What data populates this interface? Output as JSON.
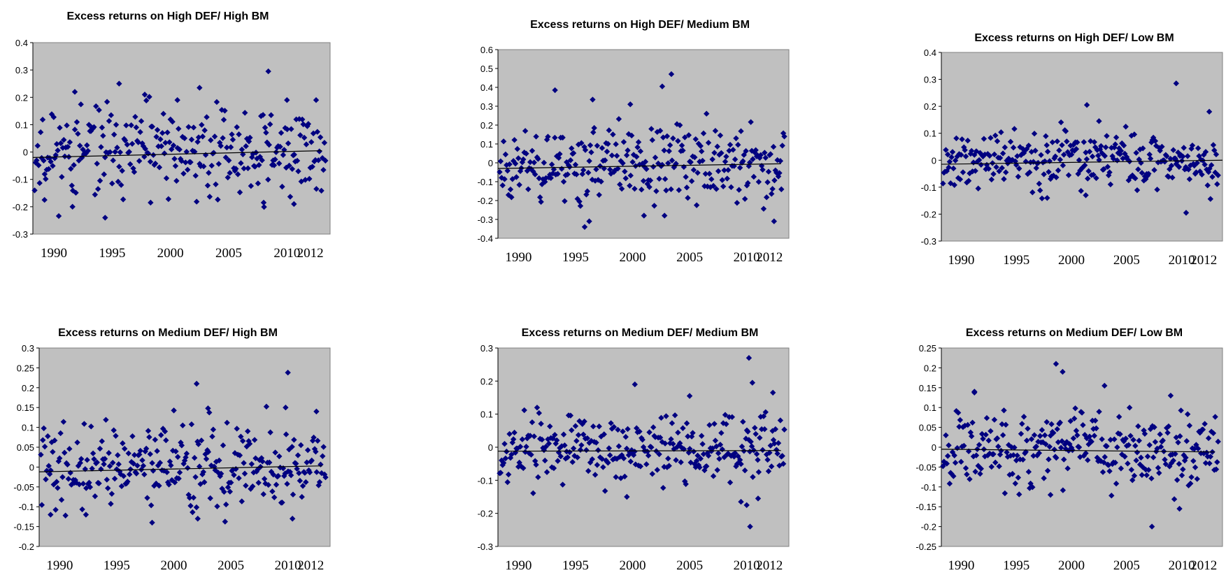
{
  "chart_data": [
    {
      "type": "scatter",
      "title": "Excess returns on High DEF/ High BM",
      "ylim": [
        -0.3,
        0.4
      ],
      "y_ticks": [
        "0.4",
        "0.3",
        "0.2",
        "0.1",
        "0",
        "-0.1",
        "-0.2",
        "-0.3"
      ],
      "x_ticks": [
        "1990",
        "1995",
        "2000",
        "2005",
        "2010",
        "2012"
      ],
      "xlim": [
        1988.2,
        2013.7
      ],
      "trend": [
        [
          1988.2,
          -0.02
        ],
        [
          2013.0,
          0.005
        ]
      ],
      "sd": 0.085,
      "seed": 11,
      "outliers": [
        [
          1991.8,
          0.22
        ],
        [
          1995.6,
          0.25
        ],
        [
          1997.8,
          0.21
        ],
        [
          2000.6,
          0.19
        ],
        [
          2002.5,
          0.235
        ],
        [
          2008.4,
          0.295
        ],
        [
          2010.0,
          0.19
        ],
        [
          2012.5,
          0.19
        ],
        [
          1994.4,
          -0.24
        ],
        [
          1998.3,
          -0.185
        ],
        [
          1991.6,
          -0.2
        ],
        [
          2010.6,
          -0.19
        ],
        [
          2008.0,
          -0.185
        ],
        [
          1989.2,
          -0.175
        ]
      ],
      "grid": false,
      "legend": "none",
      "color": "#000080",
      "background": "#c0c0c0"
    },
    {
      "type": "scatter",
      "title": "Excess returns on High DEF/ Medium BM",
      "ylim": [
        -0.4,
        0.6
      ],
      "y_ticks": [
        "0.6",
        "0.5",
        "0.4",
        "0.3",
        "0.2",
        "0.1",
        "0",
        "-0.1",
        "-0.2",
        "-0.3",
        "-0.4"
      ],
      "x_ticks": [
        "1990",
        "1995",
        "2000",
        "2005",
        "2010",
        "2012"
      ],
      "xlim": [
        1988.2,
        2013.7
      ],
      "trend": [
        [
          1988.2,
          -0.03
        ],
        [
          2013.0,
          -0.005
        ]
      ],
      "sd": 0.11,
      "seed": 23,
      "outliers": [
        [
          1993.2,
          0.385
        ],
        [
          2002.6,
          0.405
        ],
        [
          2003.4,
          0.47
        ],
        [
          1996.5,
          0.335
        ],
        [
          1999.8,
          0.31
        ],
        [
          1995.8,
          -0.34
        ],
        [
          1996.2,
          -0.31
        ],
        [
          2012.4,
          -0.31
        ],
        [
          2001.0,
          -0.28
        ],
        [
          2002.8,
          -0.28
        ]
      ],
      "grid": false,
      "legend": "none",
      "color": "#000080",
      "background": "#c0c0c0"
    },
    {
      "type": "scatter",
      "title": "Excess returns on High DEF/ Low BM",
      "ylim": [
        -0.3,
        0.4
      ],
      "y_ticks": [
        "0.4",
        "0.3",
        "0.2",
        "0.1",
        "0",
        "-0.1",
        "-0.2",
        "-0.3"
      ],
      "x_ticks": [
        "1990",
        "1995",
        "2000",
        "2005",
        "2010",
        "2012"
      ],
      "xlim": [
        1988.2,
        2013.7
      ],
      "trend": [
        [
          1988.2,
          -0.015
        ],
        [
          2013.7,
          0.0
        ]
      ],
      "sd": 0.055,
      "seed": 37,
      "outliers": [
        [
          2009.5,
          0.285
        ],
        [
          2001.4,
          0.205
        ],
        [
          2002.5,
          0.145
        ],
        [
          2012.5,
          0.18
        ],
        [
          2010.4,
          -0.195
        ],
        [
          1997.8,
          -0.14
        ],
        [
          2001.3,
          -0.13
        ]
      ],
      "grid": false,
      "legend": "none",
      "color": "#000080",
      "background": "#c0c0c0"
    },
    {
      "type": "scatter",
      "title": "Excess returns on Medium DEF/ High BM",
      "ylim": [
        -0.2,
        0.3
      ],
      "y_ticks": [
        "0.3",
        "0.25",
        "0.2",
        "0.15",
        "0.1",
        "0.05",
        "0",
        "-0.05",
        "-0.1",
        "-0.15",
        "-0.2"
      ],
      "x_ticks": [
        "1990",
        "1995",
        "2000",
        "2005",
        "2010",
        "2012"
      ],
      "xlim": [
        1988.2,
        2013.7
      ],
      "trend": [
        [
          1988.2,
          -0.012
        ],
        [
          2013.0,
          0.003
        ]
      ],
      "sd": 0.055,
      "seed": 41,
      "outliers": [
        [
          2010.0,
          0.238
        ],
        [
          2002.0,
          0.21
        ],
        [
          2003.0,
          0.148
        ],
        [
          2009.8,
          0.15
        ],
        [
          2012.5,
          0.14
        ],
        [
          1992.3,
          -0.12
        ],
        [
          1998.1,
          -0.14
        ],
        [
          2002.1,
          -0.13
        ],
        [
          2010.4,
          -0.13
        ],
        [
          1989.2,
          -0.12
        ]
      ],
      "grid": false,
      "legend": "none",
      "color": "#000080",
      "background": "#c0c0c0"
    },
    {
      "type": "scatter",
      "title": "Excess returns on Medium DEF/ Medium BM",
      "ylim": [
        -0.3,
        0.3
      ],
      "y_ticks": [
        "0.3",
        "0.2",
        "0.1",
        "0",
        "-0.1",
        "-0.2",
        "-0.3"
      ],
      "x_ticks": [
        "1990",
        "1995",
        "2000",
        "2005",
        "2010",
        "2012"
      ],
      "xlim": [
        1988.2,
        2013.7
      ],
      "trend": [
        [
          1988.2,
          -0.012
        ],
        [
          2013.0,
          -0.01
        ]
      ],
      "sd": 0.055,
      "seed": 53,
      "outliers": [
        [
          2010.2,
          0.27
        ],
        [
          2010.5,
          0.195
        ],
        [
          2000.2,
          0.19
        ],
        [
          2012.3,
          0.165
        ],
        [
          2005.0,
          0.155
        ],
        [
          2010.3,
          -0.24
        ],
        [
          2009.5,
          -0.165
        ],
        [
          2010.0,
          -0.175
        ],
        [
          2011.0,
          -0.155
        ],
        [
          1999.5,
          -0.15
        ]
      ],
      "grid": false,
      "legend": "none",
      "color": "#000080",
      "background": "#c0c0c0"
    },
    {
      "type": "scatter",
      "title": "Excess returns on Medium DEF/ Low BM",
      "ylim": [
        -0.25,
        0.25
      ],
      "y_ticks": [
        "0.25",
        "0.2",
        "0.15",
        "0.1",
        "0.05",
        "0",
        "-0.05",
        "-0.1",
        "-0.15",
        "-0.2",
        "-0.25"
      ],
      "x_ticks": [
        "1990",
        "1995",
        "2000",
        "2005",
        "2010",
        "2012"
      ],
      "xlim": [
        1988.2,
        2013.7
      ],
      "trend": [
        [
          1988.2,
          -0.005
        ],
        [
          2013.0,
          -0.012
        ]
      ],
      "sd": 0.05,
      "seed": 67,
      "outliers": [
        [
          1998.6,
          0.21
        ],
        [
          1999.2,
          0.19
        ],
        [
          2003.0,
          0.155
        ],
        [
          1991.2,
          0.14
        ],
        [
          2009.0,
          0.13
        ],
        [
          2007.3,
          -0.2
        ],
        [
          2009.8,
          -0.155
        ],
        [
          1998.1,
          -0.12
        ]
      ],
      "grid": false,
      "legend": "none",
      "color": "#000080",
      "background": "#c0c0c0"
    }
  ]
}
